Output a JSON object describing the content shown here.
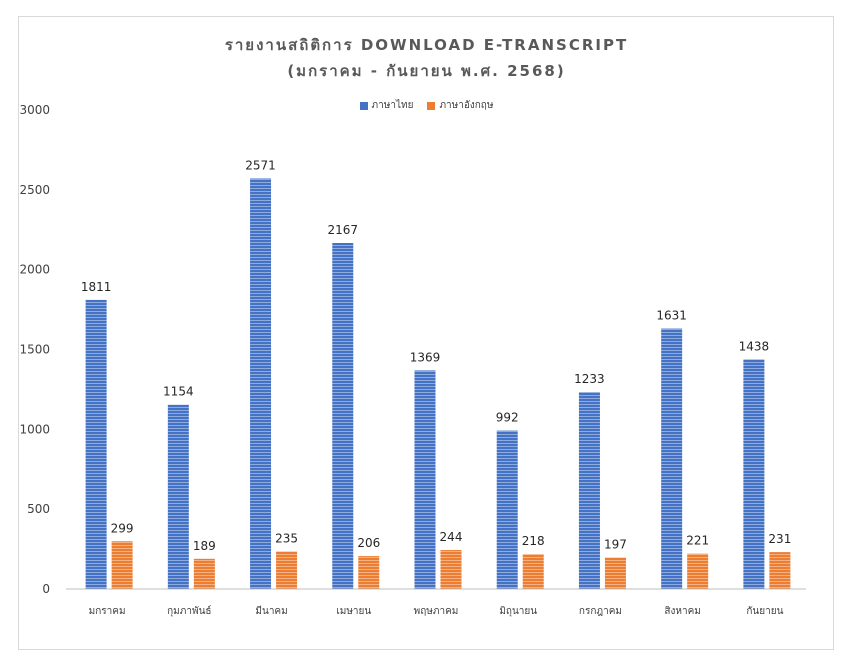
{
  "chart_data": {
    "type": "bar",
    "title": "รายงานสถิติการ DOWNLOAD E-TRANSCRIPT",
    "subtitle": "(มกราคม - กันยายน พ.ศ. 2568)",
    "xlabel": "",
    "ylabel": "",
    "ylim": [
      0,
      3000
    ],
    "yticks": [
      0,
      500,
      1000,
      1500,
      2000,
      2500,
      3000
    ],
    "grid": false,
    "legend_position": "top",
    "categories": [
      "มกราคม",
      "กุมภาพันธ์",
      "มีนาคม",
      "เมษายน",
      "พฤษภาคม",
      "มิถุนายน",
      "กรกฎาคม",
      "สิงหาคม",
      "กันยายน"
    ],
    "series": [
      {
        "name": "ภาษาไทย",
        "color": "#4472C4",
        "values": [
          1811,
          1154,
          2571,
          2167,
          1369,
          992,
          1233,
          1631,
          1438
        ]
      },
      {
        "name": "ภาษาอังกฤษ",
        "color": "#ED7D31",
        "values": [
          299,
          189,
          235,
          206,
          244,
          218,
          197,
          221,
          231
        ]
      }
    ]
  }
}
